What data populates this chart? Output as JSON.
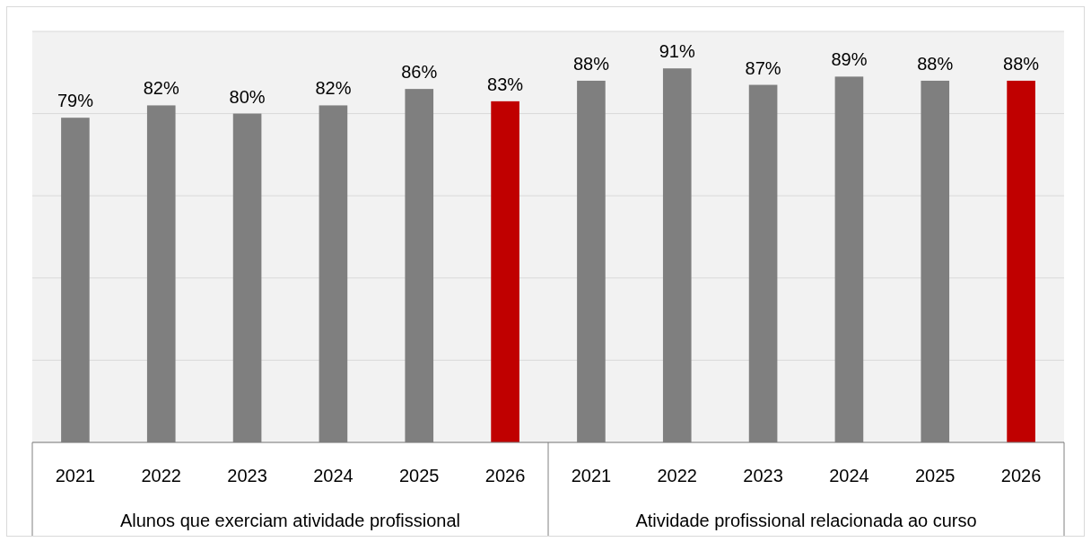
{
  "chart_data": {
    "type": "bar",
    "categories": [
      "2021",
      "2022",
      "2023",
      "2024",
      "2025",
      "2026",
      "2021",
      "2022",
      "2023",
      "2024",
      "2025",
      "2026"
    ],
    "values": [
      79,
      82,
      80,
      82,
      86,
      83,
      88,
      91,
      87,
      89,
      88,
      88
    ],
    "colors": [
      "#7f7f7f",
      "#7f7f7f",
      "#7f7f7f",
      "#7f7f7f",
      "#7f7f7f",
      "#c00000",
      "#7f7f7f",
      "#7f7f7f",
      "#7f7f7f",
      "#7f7f7f",
      "#7f7f7f",
      "#c00000"
    ],
    "value_labels": [
      "79%",
      "82%",
      "80%",
      "82%",
      "86%",
      "83%",
      "88%",
      "91%",
      "87%",
      "89%",
      "88%",
      "88%"
    ],
    "ylim": [
      0,
      100
    ],
    "yticks": [
      {
        "value": 0,
        "label": null
      },
      {
        "value": 20,
        "label": null
      },
      {
        "value": 40,
        "label": null
      },
      {
        "value": 60,
        "label": null
      },
      {
        "value": 80,
        "label": null
      },
      {
        "value": 100,
        "label": null
      }
    ],
    "grid": "y",
    "tick_labels": "x",
    "annotations": [
      "Alunos que exerciam atividade profissional",
      "Atividade profissional relacionada ao curso"
    ]
  }
}
